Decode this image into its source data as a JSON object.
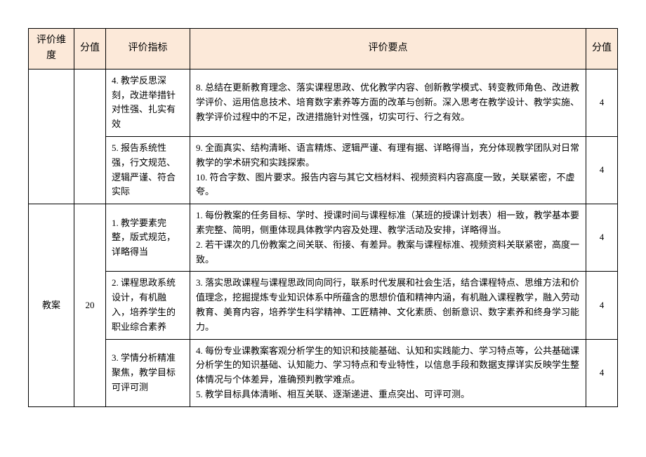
{
  "headers": {
    "dimension": "评价维度",
    "score1": "分值",
    "indicator": "评价指标",
    "points": "评价要点",
    "score2": "分值"
  },
  "rows": [
    {
      "dimension": "",
      "score1": "",
      "indicator": "4. 教学反思深刻，改进举措针对性强、扎实有效",
      "points": "8. 总结在更新教育理念、落实课程思政、优化教学内容、创新教学模式、转变教师角色、改进教学评价、运用信息技术、培育数字素养等方面的改革与创新。深入思考在教学设计、教学实施、教学评价过程中的不足，改进措施针对性强，切实可行、行之有效。",
      "score2": "4"
    },
    {
      "indicator": "5. 报告系统性强，行文规范、逻辑严谨、符合实际",
      "points": "9. 全面真实、结构清晰、语言精炼、逻辑严谨、有理有据、详略得当，充分体现教学团队对日常教学的学术研究和实践探索。\n10. 符合字数、图片要求。报告内容与其它文档材料、视频资料内容高度一致，关联紧密，不虚夸。",
      "score2": "4"
    },
    {
      "dimension": "教案",
      "score1": "20",
      "indicator": "1. 教学要素完整，版式规范，详略得当",
      "points": "1. 每份教案的任务目标、学时、授课时间与课程标准（某班的授课计划表）相一致，教学基本要素完整、简明，侧重体现具体教学内容及处理、教学活动及安排，详略得当。\n2. 若干课次的几份教案之间关联、衔接、有差异。教案与课程标准、视频资料关联紧密，高度一致。",
      "score2": "4"
    },
    {
      "indicator": "2. 课程思政系统设计，有机融入，培养学生的职业综合素养",
      "points": "3. 落实思政课程与课程思政同向同行，联系时代发展和社会生活，结合课程特点、思维方法和价值理念，挖掘提炼专业知识体系中所蕴含的思想价值和精神内涵，有机融入课程教学，融入劳动教育、美育内容，培养学生科学精神、工匠精神、文化素质、创新意识、数字素养和终身学习能力。",
      "score2": "4"
    },
    {
      "indicator": "3. 学情分析精准聚焦，教学目标可评可测",
      "points": "4. 每份专业课教案客观分析学生的知识和技能基础、认知和实践能力、学习特点等，公共基础课分析学生的知识基础、认知能力、学习特点和专业特性，以信息手段和数据支撑详实反映学生整体情况与个体差异，准确预判教学难点。\n5. 教学目标具体清晰、相互关联、逐渐递进、重点突出、可评可测。",
      "score2": "4"
    }
  ]
}
